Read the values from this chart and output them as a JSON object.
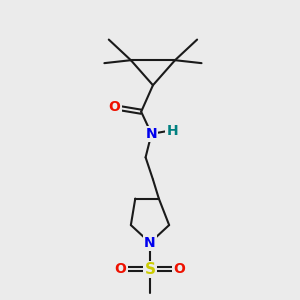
{
  "bg_color": "#ebebeb",
  "bond_color": "#1a1a1a",
  "O_color": "#ee1100",
  "N_color": "#0000ee",
  "S_color": "#cccc00",
  "H_color": "#008080",
  "line_width": 1.5,
  "font_size_atom": 10,
  "xlim": [
    0,
    10
  ],
  "ylim": [
    0,
    10
  ]
}
